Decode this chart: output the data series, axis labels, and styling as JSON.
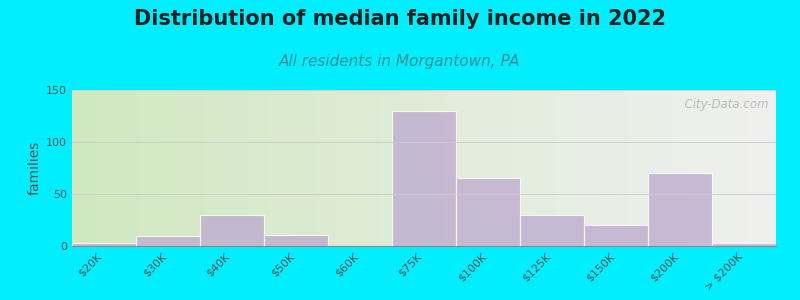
{
  "title": "Distribution of median family income in 2022",
  "subtitle": "All residents in Morgantown, PA",
  "ylabel": "families",
  "categories": [
    "$20K",
    "$30K",
    "$40K",
    "$50K",
    "$60K",
    "$75K",
    "$100K",
    "$125K",
    "$150K",
    "$200K",
    "> $200K"
  ],
  "values": [
    3,
    10,
    30,
    11,
    0,
    130,
    65,
    30,
    20,
    70,
    3
  ],
  "bar_color": "#c0aed0",
  "bg_outer": "#00eeff",
  "bg_plot_left": "#d0e8c0",
  "bg_plot_right": "#f0f0f0",
  "title_fontsize": 15,
  "subtitle_fontsize": 11,
  "subtitle_color": "#3a9090",
  "ylabel_fontsize": 10,
  "tick_fontsize": 8,
  "ylim": [
    0,
    150
  ],
  "yticks": [
    0,
    50,
    100,
    150
  ],
  "watermark": "  City-Data.com"
}
